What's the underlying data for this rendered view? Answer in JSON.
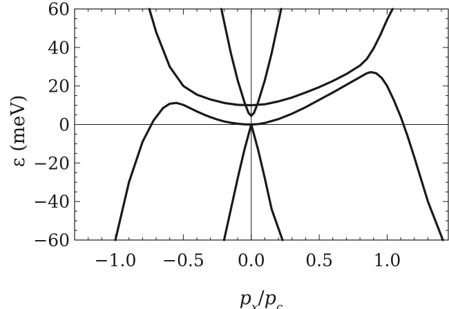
{
  "chart_data": {
    "type": "line",
    "title": "",
    "xlabel": "p_x/p_c",
    "xlabel_parts": {
      "num": "p",
      "num_sub": "x",
      "slash": "/",
      "den": "p",
      "den_sub": "c"
    },
    "ylabel": "ε (meV)",
    "xlim": [
      -1.3,
      1.45
    ],
    "ylim": [
      -60,
      60
    ],
    "x_ticks": [
      -1.0,
      -0.5,
      0.0,
      0.5,
      1.0
    ],
    "x_tick_labels": [
      "−1.0",
      "−0.5",
      "0.0",
      "0.5",
      "1.0"
    ],
    "y_ticks": [
      60,
      40,
      20,
      0,
      -20,
      -40,
      -60
    ],
    "y_tick_labels": [
      "60",
      "40",
      "20",
      "0",
      "−20",
      "−40",
      "−60"
    ],
    "grid": false,
    "reference_lines": [
      {
        "axis": "x",
        "value": 0
      },
      {
        "axis": "y",
        "value": 0
      }
    ],
    "series": [
      {
        "x": [
          -1.0,
          -0.9,
          -0.8,
          -0.72,
          -0.65,
          -0.6,
          -0.55,
          -0.5,
          -0.45,
          -0.4,
          -0.35,
          -0.3,
          -0.25,
          -0.2,
          -0.15,
          -0.1,
          -0.05,
          0.0,
          0.05,
          0.1,
          0.2,
          0.3,
          0.4,
          0.5,
          0.6,
          0.7,
          0.8,
          0.85,
          0.88,
          0.92,
          0.96,
          1.0,
          1.05,
          1.1,
          1.15,
          1.2,
          1.3,
          1.41
        ],
        "values": [
          -60,
          -30,
          -9,
          2,
          8.5,
          10.8,
          11.2,
          10.2,
          8.5,
          6.8,
          5.2,
          3.8,
          2.6,
          1.6,
          0.9,
          0.4,
          0.1,
          0,
          0.2,
          0.8,
          2.8,
          5.6,
          9,
          12.8,
          16.6,
          20.6,
          24.6,
          26.6,
          27.2,
          26.6,
          24.2,
          20,
          12.5,
          4,
          -6,
          -17,
          -40,
          -60
        ]
      },
      {
        "x": [
          -0.75,
          -0.7,
          -0.6,
          -0.5,
          -0.4,
          -0.3,
          -0.2,
          -0.1,
          0.0,
          0.1,
          0.2,
          0.3,
          0.4,
          0.5,
          0.6,
          0.7,
          0.8,
          0.85,
          0.9,
          0.95,
          1.0,
          1.04
        ],
        "values": [
          60,
          48,
          30,
          20,
          15.5,
          13,
          11.2,
          10.2,
          10,
          10.5,
          12,
          14,
          16.6,
          19.4,
          22.6,
          26.2,
          30.6,
          34,
          39.5,
          46.5,
          54.5,
          60
        ]
      },
      {
        "x": [
          -0.22,
          -0.15,
          -0.1,
          -0.05,
          -0.02,
          0.0,
          0.02,
          0.05,
          0.1,
          0.15,
          0.22
        ],
        "values": [
          60,
          37,
          23,
          11.5,
          6,
          4.5,
          6,
          11.5,
          23,
          37,
          60
        ]
      },
      {
        "x": [
          -0.2,
          -0.15,
          -0.1,
          -0.05,
          0.0,
          0.05,
          0.1,
          0.15,
          0.23
        ],
        "values": [
          -60,
          -44,
          -28,
          -13,
          0,
          -13,
          -28,
          -44,
          -60
        ]
      }
    ]
  }
}
